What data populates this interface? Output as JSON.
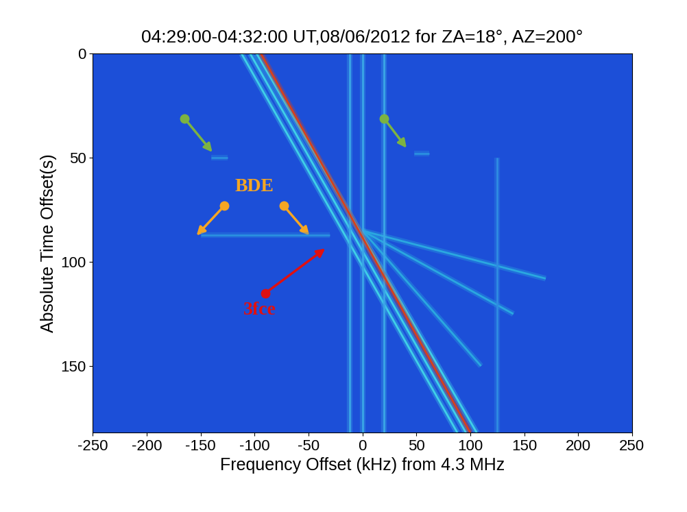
{
  "chart_data": {
    "type": "line",
    "title": "04:29:00-04:32:00 UT,08/06/2012 for ZA=18°, AZ=200°",
    "x_label": "Frequency Offset (kHz) from 4.3 MHz",
    "y_label": "Absolute Time Offset(s)",
    "xlim": [
      -250,
      250
    ],
    "xticks": [
      -250,
      -200,
      -150,
      -100,
      -50,
      0,
      50,
      100,
      150,
      200,
      250
    ],
    "ylim": [
      182,
      0
    ],
    "yticks": [
      0,
      50,
      100,
      150
    ],
    "grid": false,
    "series": [
      {
        "color": "#3fd0e8",
        "x": [
          -112,
          88
        ],
        "values": [
          0,
          182
        ]
      },
      {
        "color": "#3fd0e8",
        "x": [
          -104,
          96
        ],
        "values": [
          0,
          182
        ]
      },
      {
        "color": "#3fd0e8",
        "x": [
          -98,
          106
        ],
        "values": [
          0,
          182
        ]
      },
      {
        "color": "#2aa8e0",
        "x": [
          0,
          170
        ],
        "values": [
          85,
          108
        ]
      },
      {
        "color": "#2aa8e0",
        "x": [
          0,
          140
        ],
        "values": [
          85,
          125
        ]
      },
      {
        "color": "#2aa8e0",
        "x": [
          0,
          110
        ],
        "values": [
          85,
          150
        ]
      },
      {
        "color": "#2a8fe0",
        "x": [
          -150,
          -30
        ],
        "values": [
          87,
          87
        ]
      },
      {
        "color": "#2a8fe0",
        "x": [
          -140,
          -125
        ],
        "values": [
          50,
          50
        ]
      },
      {
        "color": "#2a8fe0",
        "x": [
          48,
          62
        ],
        "values": [
          48,
          48
        ]
      },
      {
        "color": "#3aa6e6",
        "x": [
          -12,
          -12
        ],
        "values": [
          0,
          182
        ]
      },
      {
        "color": "#3aa6e6",
        "x": [
          0,
          0
        ],
        "values": [
          0,
          182
        ]
      },
      {
        "color": "#3aa6e6",
        "x": [
          20,
          20
        ],
        "values": [
          0,
          182
        ]
      },
      {
        "color": "#2f8ce2",
        "x": [
          125,
          125
        ],
        "values": [
          50,
          182
        ]
      },
      {
        "color": "#d8401a",
        "x": [
          -94,
          100
        ],
        "values": [
          0,
          182
        ]
      }
    ],
    "annotations": [
      {
        "text": "BDE",
        "color": "#f5a623",
        "xytext": [
          -100,
          64
        ],
        "arrows": [
          {
            "from": [
              -128,
              73
            ],
            "to": [
              -155,
              88
            ]
          },
          {
            "from": [
              -73,
              73
            ],
            "to": [
              -48,
              88
            ]
          }
        ]
      },
      {
        "text": "3fce",
        "color": "#e01010",
        "xytext": [
          -95,
          123
        ],
        "arrows": [
          {
            "from": [
              -90,
              115
            ],
            "to": [
              -33,
              93
            ]
          }
        ]
      },
      {
        "color": "#7cb342",
        "arrows": [
          {
            "from": [
              -165,
              31
            ],
            "to": [
              -138,
              48
            ]
          },
          {
            "from": [
              20,
              31
            ],
            "to": [
              42,
              46
            ]
          }
        ]
      }
    ]
  }
}
